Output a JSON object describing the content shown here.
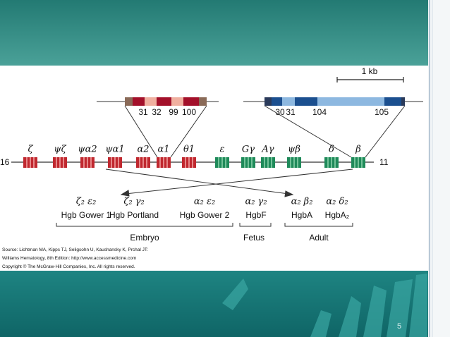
{
  "scale_label": "1 kb",
  "alpha_detail": {
    "exon_labels": [
      "31",
      "32",
      "99",
      "100"
    ]
  },
  "beta_detail": {
    "exon_labels": [
      "30",
      "31",
      "104",
      "105"
    ]
  },
  "chromosomes": [
    {
      "number": "16",
      "genes": [
        "ζ",
        "ψζ",
        "ψα2",
        "ψα1",
        "α2",
        "α1",
        "θ1"
      ]
    },
    {
      "number": "11",
      "genes": [
        "ε",
        "Gγ",
        "Aγ",
        "ψβ",
        "δ",
        "β"
      ]
    }
  ],
  "hemoglobins": [
    {
      "chains": "ζ₂ ε₂",
      "name": "Hgb Gower 1"
    },
    {
      "chains": "ζ₂ γ₂",
      "name": "Hgb Portland"
    },
    {
      "chains": "α₂ ε₂",
      "name": "Hgb Gower 2"
    },
    {
      "chains": "α₂ γ₂",
      "name": "HgbF"
    },
    {
      "chains": "α₂ β₂",
      "name": "HgbA"
    },
    {
      "chains": "α₂ δ₂",
      "name": "HgbA₂"
    }
  ],
  "stages": [
    "Embryo",
    "Fetus",
    "Adult"
  ],
  "source": [
    "Source: Lichtman MA, Kipps TJ, Seligsohn U, Kaushansky K, Prchal JT:",
    "Williams Hematology, 8th Edition: http://www.accessmedicine.com",
    "Copyright © The McGraw-Hill Companies, Inc. All rights reserved."
  ],
  "slide_number": "5"
}
